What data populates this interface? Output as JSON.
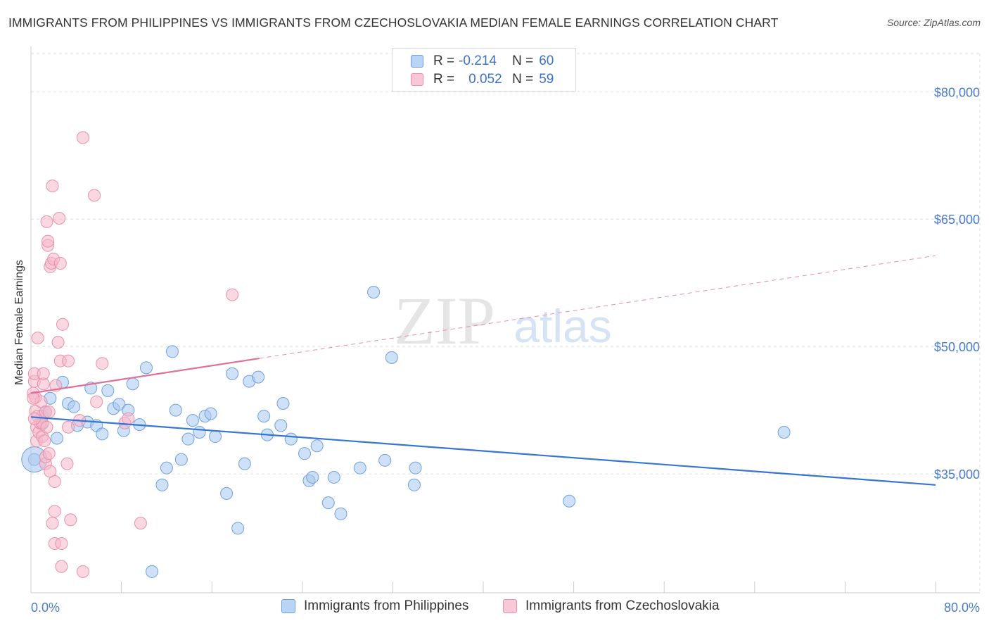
{
  "title": "IMMIGRANTS FROM PHILIPPINES VS IMMIGRANTS FROM CZECHOSLOVAKIA MEDIAN FEMALE EARNINGS CORRELATION CHART",
  "source": "Source: ZipAtlas.com",
  "watermark": {
    "zip": "ZIP",
    "atlas": "atlas"
  },
  "colors": {
    "blue_fill": "#a8c8f0",
    "blue_stroke": "#6fa0dc",
    "blue_line": "#3576d4",
    "pink_fill": "#f5b8cb",
    "pink_stroke": "#e890ab",
    "pink_line": "#e0709a",
    "tick_text": "#4a7cc9",
    "grid": "#dddddd"
  },
  "legend_top": {
    "rows": [
      {
        "r_label": "R =",
        "r_value": "-0.214",
        "n_label": "N =",
        "n_value": "60"
      },
      {
        "r_label": "R =",
        "r_value": "0.052",
        "n_label": "N =",
        "n_value": "59"
      }
    ]
  },
  "legend_bottom": [
    "Immigrants from Philippines",
    "Immigrants from Czechoslovakia"
  ],
  "chart_data": {
    "type": "scatter",
    "title": "IMMIGRANTS FROM PHILIPPINES VS IMMIGRANTS FROM CZECHOSLOVAKIA MEDIAN FEMALE EARNINGS CORRELATION CHART",
    "xlabel": "",
    "ylabel": "Median Female Earnings",
    "xlim": [
      0,
      80
    ],
    "ylim": [
      21000,
      84500
    ],
    "x_tick_labels": [
      "0.0%",
      "80.0%"
    ],
    "y_ticks": [
      35000,
      50000,
      65000,
      80000
    ],
    "y_tick_labels": [
      "$35,000",
      "$50,000",
      "$65,000",
      "$80,000"
    ],
    "grid": true,
    "legend_position": "top-center",
    "series": [
      {
        "name": "Immigrants from Philippines",
        "r": -0.214,
        "n": 60,
        "trend": {
          "x": [
            0,
            80
          ],
          "y": [
            41700,
            33700
          ],
          "style": "solid"
        },
        "points": [
          [
            0.3,
            36700
          ],
          [
            1.0,
            41800
          ],
          [
            1.0,
            40900
          ],
          [
            1.3,
            42300
          ],
          [
            1.7,
            43900
          ],
          [
            2.3,
            39200
          ],
          [
            2.8,
            45800
          ],
          [
            3.3,
            43300
          ],
          [
            3.8,
            42900
          ],
          [
            4.1,
            40700
          ],
          [
            5.0,
            41100
          ],
          [
            5.3,
            45100
          ],
          [
            5.8,
            40700
          ],
          [
            6.3,
            39700
          ],
          [
            6.8,
            44800
          ],
          [
            7.3,
            42700
          ],
          [
            7.8,
            43200
          ],
          [
            8.2,
            40100
          ],
          [
            8.6,
            42500
          ],
          [
            9.0,
            45600
          ],
          [
            9.6,
            40800
          ],
          [
            10.2,
            47500
          ],
          [
            10.7,
            23500
          ],
          [
            11.6,
            33700
          ],
          [
            12.0,
            35700
          ],
          [
            12.5,
            49400
          ],
          [
            12.8,
            42500
          ],
          [
            13.3,
            36700
          ],
          [
            13.9,
            39100
          ],
          [
            14.3,
            41300
          ],
          [
            14.9,
            39900
          ],
          [
            15.4,
            41800
          ],
          [
            15.9,
            42100
          ],
          [
            16.3,
            39400
          ],
          [
            17.3,
            32700
          ],
          [
            17.8,
            46800
          ],
          [
            18.3,
            28600
          ],
          [
            18.9,
            36200
          ],
          [
            19.3,
            45900
          ],
          [
            20.1,
            46400
          ],
          [
            20.6,
            41800
          ],
          [
            20.9,
            39600
          ],
          [
            22.1,
            40700
          ],
          [
            22.3,
            43300
          ],
          [
            23.0,
            39100
          ],
          [
            24.2,
            37400
          ],
          [
            24.6,
            34200
          ],
          [
            24.9,
            34600
          ],
          [
            25.3,
            38300
          ],
          [
            26.3,
            31600
          ],
          [
            26.8,
            34600
          ],
          [
            27.4,
            30300
          ],
          [
            29.1,
            35700
          ],
          [
            30.3,
            56400
          ],
          [
            31.3,
            36600
          ],
          [
            31.9,
            48700
          ],
          [
            33.9,
            33700
          ],
          [
            34.0,
            35700
          ],
          [
            47.6,
            31800
          ],
          [
            66.6,
            39900
          ]
        ]
      },
      {
        "name": "Immigrants from Czechoslovakia",
        "r": 0.052,
        "n": 59,
        "trend": {
          "x": [
            0,
            20.2
          ],
          "y": [
            44500,
            48600
          ],
          "style": "solid",
          "extended": {
            "x": [
              20.2,
              80
            ],
            "y": [
              48600,
              60700
            ],
            "style": "dashed"
          }
        },
        "points": [
          [
            0.2,
            44500
          ],
          [
            0.3,
            45900
          ],
          [
            0.3,
            46800
          ],
          [
            0.4,
            44000
          ],
          [
            0.4,
            42400
          ],
          [
            0.5,
            38900
          ],
          [
            0.5,
            40500
          ],
          [
            0.6,
            41800
          ],
          [
            0.6,
            51000
          ],
          [
            0.7,
            39900
          ],
          [
            0.8,
            41000
          ],
          [
            0.9,
            43500
          ],
          [
            1.0,
            39400
          ],
          [
            1.0,
            41000
          ],
          [
            1.1,
            45600
          ],
          [
            1.1,
            46800
          ],
          [
            1.2,
            38900
          ],
          [
            1.3,
            42300
          ],
          [
            1.3,
            36200
          ],
          [
            1.3,
            37000
          ],
          [
            1.4,
            40500
          ],
          [
            1.4,
            64700
          ],
          [
            1.5,
            61900
          ],
          [
            1.5,
            62400
          ],
          [
            1.6,
            37400
          ],
          [
            1.6,
            42300
          ],
          [
            1.7,
            35300
          ],
          [
            1.7,
            59400
          ],
          [
            1.8,
            59800
          ],
          [
            1.9,
            68900
          ],
          [
            1.9,
            29200
          ],
          [
            2.0,
            60300
          ],
          [
            2.1,
            30600
          ],
          [
            2.1,
            34100
          ],
          [
            2.1,
            26800
          ],
          [
            2.2,
            45400
          ],
          [
            2.4,
            50500
          ],
          [
            2.5,
            65100
          ],
          [
            2.6,
            48300
          ],
          [
            2.6,
            59800
          ],
          [
            2.7,
            26800
          ],
          [
            2.7,
            24100
          ],
          [
            2.8,
            52600
          ],
          [
            3.2,
            36200
          ],
          [
            3.3,
            40500
          ],
          [
            3.3,
            48300
          ],
          [
            3.5,
            29600
          ],
          [
            4.3,
            41300
          ],
          [
            4.6,
            74600
          ],
          [
            4.6,
            23500
          ],
          [
            5.6,
            67800
          ],
          [
            5.8,
            43500
          ],
          [
            6.3,
            48000
          ],
          [
            8.3,
            41000
          ],
          [
            8.6,
            41500
          ],
          [
            9.7,
            29200
          ],
          [
            17.8,
            56100
          ],
          [
            0.2,
            43900
          ],
          [
            0.3,
            41500
          ]
        ]
      }
    ]
  }
}
